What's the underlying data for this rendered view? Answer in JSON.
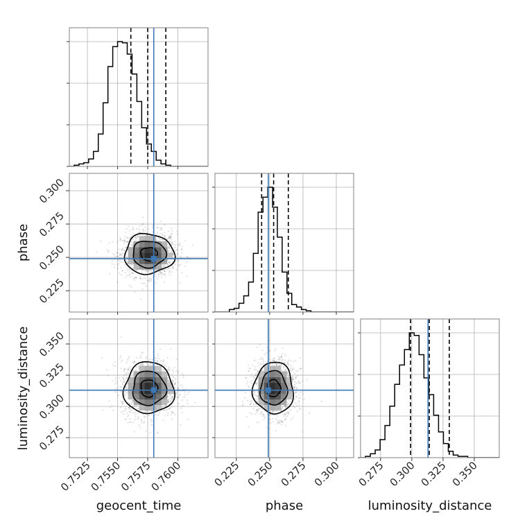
{
  "colors": {
    "truth": "#3c78b4",
    "hist": "#000000",
    "grid": "#b0b0b0",
    "frame": "#808080"
  },
  "chart_data": {
    "type": "corner",
    "grid": true,
    "parameters": [
      {
        "name": "geocent_time",
        "label": "geocent_time",
        "range": [
          0.751,
          0.7625
        ],
        "ticks": [
          0.7525,
          0.755,
          0.7575,
          0.76
        ],
        "tick_labels": [
          "0.7525",
          "0.7550",
          "0.7575",
          "0.7600"
        ],
        "truth": 0.758,
        "quantiles": [
          0.7561,
          0.7575,
          0.759
        ],
        "hist": {
          "edges_start": 0.751,
          "bin_width": 0.0004,
          "values": [
            0,
            1,
            2,
            3,
            6,
            12,
            26,
            51,
            80,
            96,
            100,
            99,
            90,
            74,
            52,
            31,
            18,
            12,
            5,
            2,
            1,
            0,
            0,
            0,
            0,
            0,
            0,
            0,
            0
          ]
        }
      },
      {
        "name": "phase",
        "label": "phase",
        "range": [
          0.209,
          0.313
        ],
        "ticks": [
          0.225,
          0.25,
          0.275,
          0.3
        ],
        "tick_labels": [
          "0.225",
          "0.250",
          "0.275",
          "0.300"
        ],
        "truth": 0.249,
        "quantiles": [
          0.244,
          0.253,
          0.264
        ],
        "hist": {
          "edges_start": 0.209,
          "bin_width": 0.0036,
          "values": [
            0,
            0,
            0,
            2,
            3,
            7,
            13,
            24,
            47,
            80,
            92,
            100,
            84,
            60,
            32,
            15,
            6,
            4,
            2,
            1,
            0,
            0,
            0,
            0,
            0,
            0,
            0,
            0,
            0
          ]
        }
      },
      {
        "name": "luminosity_distance",
        "label": "luminosity_distance",
        "range": [
          0.259,
          0.37
        ],
        "ticks": [
          0.275,
          0.3,
          0.325,
          0.35
        ],
        "tick_labels": [
          "0.275",
          "0.300",
          "0.325",
          "0.350"
        ],
        "truth": 0.313,
        "quantiles": [
          0.299,
          0.314,
          0.33
        ],
        "hist": {
          "edges_start": 0.259,
          "bin_width": 0.0039,
          "values": [
            0,
            1,
            3,
            6,
            14,
            25,
            40,
            57,
            72,
            84,
            97,
            95,
            80,
            62,
            49,
            33,
            20,
            11,
            5,
            2,
            1,
            1,
            0,
            0,
            0,
            0,
            0,
            0,
            0
          ]
        }
      }
    ],
    "contours_2d": [
      {
        "x": "geocent_time",
        "y": "phase",
        "center": [
          0.7576,
          0.2525
        ],
        "sigma": [
          0.0011,
          0.008
        ],
        "levels": [
          0.5,
          1.0,
          1.5
        ]
      },
      {
        "x": "geocent_time",
        "y": "luminosity_distance",
        "center": [
          0.7576,
          0.3145
        ],
        "sigma": [
          0.0011,
          0.011
        ],
        "levels": [
          0.5,
          1.0,
          1.5
        ]
      },
      {
        "x": "phase",
        "y": "luminosity_distance",
        "center": [
          0.253,
          0.3145
        ],
        "sigma": [
          0.008,
          0.011
        ],
        "levels": [
          0.5,
          1.0,
          1.5
        ]
      }
    ]
  }
}
